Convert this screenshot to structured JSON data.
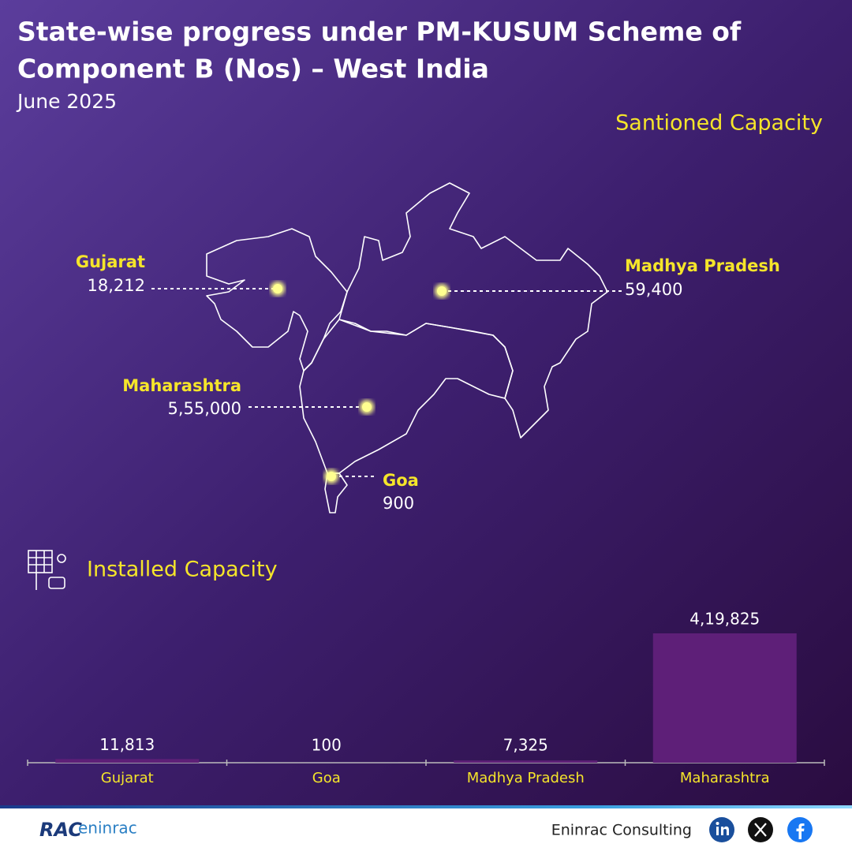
{
  "header": {
    "title_lines": [
      "State-wise progress under PM-KUSUM Scheme of",
      "Component B (Nos) – West India"
    ],
    "subtitle": "June 2025"
  },
  "map": {
    "title": "Santioned Capacity",
    "states": [
      {
        "name": "Gujarat",
        "value": "18,212"
      },
      {
        "name": "Madhya Pradesh",
        "value": "59,400"
      },
      {
        "name": "Maharashtra",
        "value": "5,55,000"
      },
      {
        "name": "Goa",
        "value": "900"
      }
    ]
  },
  "chart_data": {
    "type": "bar",
    "title": "Installed Capacity",
    "categories": [
      "Gujarat",
      "Goa",
      "Madhya Pradesh",
      "Maharashtra"
    ],
    "values": [
      11813,
      100,
      7325,
      419825
    ],
    "value_labels": [
      "11,813",
      "100",
      "7,325",
      "4,19,825"
    ],
    "color": "#5e1f78"
  },
  "footer": {
    "logo": [
      "RAC",
      "eninrac"
    ],
    "company": "Eninrac Consulting"
  }
}
